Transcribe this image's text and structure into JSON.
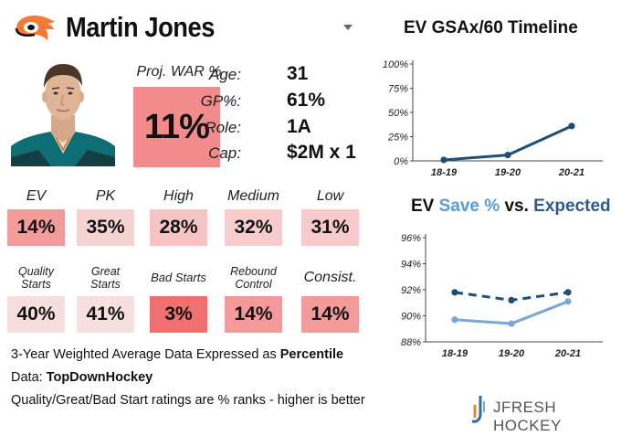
{
  "header": {
    "player_name": "Martin Jones",
    "team_logo_icon": "flyers-logo-icon",
    "dropdown_icon": "chevron-down-icon"
  },
  "war": {
    "label": "Proj. WAR %",
    "value": "11%",
    "color": "#f28b8b"
  },
  "info": [
    {
      "label": "Age:",
      "value": "31"
    },
    {
      "label": "GP%:",
      "value": "61%"
    },
    {
      "label": "Role:",
      "value": "1A"
    },
    {
      "label": "Cap:",
      "value": "$2M x 1"
    }
  ],
  "metrics_row1": [
    {
      "label": "EV",
      "value": "14%",
      "color": "#f39a9a"
    },
    {
      "label": "PK",
      "value": "35%",
      "color": "#f6d3d3"
    },
    {
      "label": "High",
      "value": "28%",
      "color": "#f5c5c5"
    },
    {
      "label": "Medium",
      "value": "32%",
      "color": "#f6cccc"
    },
    {
      "label": "Low",
      "value": "31%",
      "color": "#f6caca"
    }
  ],
  "metrics_row2": [
    {
      "label": "Quality Starts",
      "value": "40%",
      "color": "#f7dede"
    },
    {
      "label": "Great Starts",
      "value": "41%",
      "color": "#f7e0e0"
    },
    {
      "label": "Bad Starts",
      "value": "3%",
      "color": "#f06f6f"
    },
    {
      "label": "Rebound Control",
      "value": "14%",
      "color": "#f39a9a"
    },
    {
      "label": "Consist.",
      "value": "14%",
      "color": "#f39a9a"
    }
  ],
  "notes": {
    "line1_prefix": "3-Year Weighted Average Data Expressed as ",
    "line1_bold": "Percentile",
    "line2_prefix": "Data: ",
    "line2_bold": "TopDownHockey",
    "line3": "Quality/Great/Bad Start ratings are % ranks - higher is better"
  },
  "brand": {
    "name": "JFRESH HOCKEY",
    "logo_icon": "jfresh-logo-icon"
  },
  "chart_data": [
    {
      "type": "line",
      "title": "EV GSAx/60 Timeline",
      "categories": [
        "18-19",
        "19-20",
        "20-21"
      ],
      "ylim": [
        0,
        100
      ],
      "yticks": [
        "0%",
        "25%",
        "50%",
        "75%",
        "100%"
      ],
      "ytick_values": [
        0,
        25,
        50,
        75,
        100
      ],
      "series": [
        {
          "values": [
            1,
            6,
            36
          ],
          "color": "#1f4e79",
          "dashed": false
        }
      ],
      "grid": false
    },
    {
      "type": "line",
      "title_parts": [
        "EV ",
        "Save %",
        " vs. ",
        "Expected"
      ],
      "title_colors": [
        "#111111",
        "#5b9bd5",
        "#111111",
        "#2e5a8a"
      ],
      "categories": [
        "18-19",
        "19-20",
        "20-21"
      ],
      "ylim": [
        88,
        96
      ],
      "yticks": [
        "88%",
        "90%",
        "92%",
        "94%",
        "96%"
      ],
      "ytick_values": [
        88,
        90,
        92,
        94,
        96
      ],
      "series": [
        {
          "name": "Save %",
          "values": [
            89.7,
            89.4,
            91.1
          ],
          "color": "#7aa7d6",
          "dashed": false
        },
        {
          "name": "Expected",
          "values": [
            91.8,
            91.2,
            91.8
          ],
          "color": "#1f4e79",
          "dashed": true
        }
      ],
      "grid": false
    }
  ]
}
